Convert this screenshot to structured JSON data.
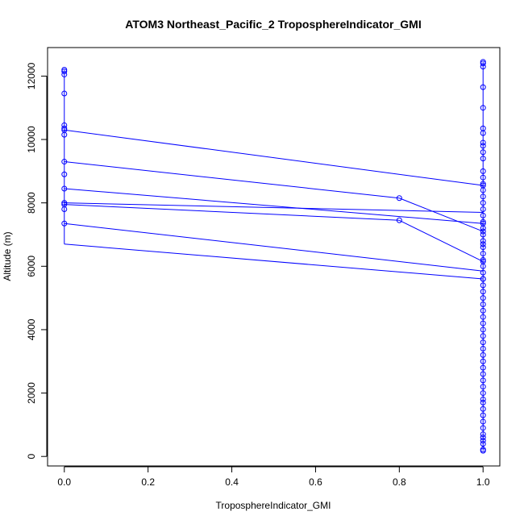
{
  "chart_data": {
    "type": "line",
    "title": "ATOM3 Northeast_Pacific_2 TroposphereIndicator_GMI",
    "xlabel": "TroposphereIndicator_GMI",
    "ylabel": "Altitude (m)",
    "xlim": [
      -0.04,
      1.04
    ],
    "ylim": [
      -300,
      12900
    ],
    "xticks": [
      "0.0",
      "0.2",
      "0.4",
      "0.6",
      "0.8",
      "1.0"
    ],
    "xtick_values": [
      0,
      0.2,
      0.4,
      0.6,
      0.8,
      1.0
    ],
    "yticks": [
      "0",
      "2000",
      "4000",
      "6000",
      "8000",
      "10000",
      "12000"
    ],
    "ytick_values": [
      0,
      2000,
      4000,
      6000,
      8000,
      10000,
      12000
    ],
    "grid": false,
    "color": "#0000ff",
    "series": [
      {
        "x": [
          0,
          0,
          0,
          0,
          0,
          0,
          0,
          0,
          0,
          0,
          0,
          0,
          0,
          0,
          0,
          1.0,
          1.0,
          1.0,
          1.0,
          1.0,
          1.0,
          1.0,
          1.0,
          1.0,
          1.0,
          1.0,
          1.0,
          1.0,
          1.0,
          1.0,
          1.0,
          1.0,
          1.0,
          1.0,
          1.0,
          1.0,
          1.0,
          1.0,
          1.0,
          1.0,
          1.0,
          1.0,
          1.0,
          1.0,
          1.0,
          1.0,
          1.0,
          1.0,
          1.0,
          1.0,
          1.0,
          1.0,
          1.0,
          1.0,
          1.0,
          1.0,
          1.0,
          1.0,
          1.0,
          1.0,
          1.0,
          1.0,
          1.0,
          1.0,
          1.0,
          1.0,
          1.0,
          1.0,
          1.0,
          1.0,
          1.0,
          1.0,
          1.0,
          1.0,
          1.0,
          1.0,
          1.0,
          1.0,
          1.0,
          1.0
        ],
        "y": [
          12200,
          12150,
          12050,
          11450,
          10450,
          10350,
          10300,
          10150,
          9300,
          8900,
          8450,
          8000,
          7950,
          7800,
          7350,
          6700,
          180,
          220,
          400,
          500,
          600,
          700,
          900,
          1100,
          1300,
          1500,
          1700,
          1800,
          2000,
          2200,
          2400,
          2600,
          2800,
          3000,
          3200,
          3400,
          3600,
          3800,
          4000,
          4200,
          4400,
          4600,
          4800,
          5000,
          5200,
          5400,
          5600,
          5800,
          6000,
          6200,
          6400,
          6600,
          6800,
          7000,
          7200,
          7400,
          7600,
          7800,
          8000,
          8200,
          8400,
          8600,
          8800,
          9000,
          9400,
          9600,
          9800,
          9900,
          10200,
          10350,
          11000,
          11650,
          12300,
          12400,
          12450,
          8550,
          7350,
          7100,
          6150,
          5600
        ]
      }
    ],
    "line_segments": [
      {
        "from": [
          0,
          10300
        ],
        "to": [
          1.0,
          8550
        ]
      },
      {
        "from": [
          0,
          9300
        ],
        "to": [
          0.8,
          8150
        ]
      },
      {
        "from": [
          0.8,
          8150
        ],
        "to": [
          1.0,
          7100
        ]
      },
      {
        "from": [
          0,
          8450
        ],
        "to": [
          1.0,
          7350
        ]
      },
      {
        "from": [
          0,
          8000
        ],
        "to": [
          1.0,
          7700
        ]
      },
      {
        "from": [
          0,
          7950
        ],
        "to": [
          0.8,
          7450
        ]
      },
      {
        "from": [
          0.8,
          7450
        ],
        "to": [
          1.0,
          6150
        ]
      },
      {
        "from": [
          0,
          7350
        ],
        "to": [
          1.0,
          5850
        ]
      },
      {
        "from": [
          0,
          6700
        ],
        "to": [
          1.0,
          5600
        ]
      },
      {
        "from": [
          0,
          6700
        ],
        "to": [
          0,
          12200
        ]
      },
      {
        "from": [
          1.0,
          180
        ],
        "to": [
          1.0,
          12450
        ]
      }
    ],
    "extra_points": [
      {
        "x": 0.8,
        "y": 8150
      },
      {
        "x": 0.8,
        "y": 7450
      }
    ]
  }
}
